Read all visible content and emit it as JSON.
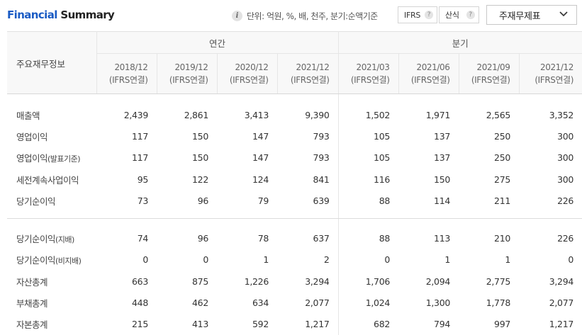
{
  "header": {
    "title_accent": "Financial",
    "title_rest": " Summary",
    "unit_text": "단위: 억원, %, 배, 천주, 분기:순액기준",
    "toggle_ifrs": "IFRS",
    "toggle_sansik": "산식",
    "help_glyph": "?",
    "select_label": "주재무제표"
  },
  "table": {
    "item_header": "주요재무정보",
    "group_annual": "연간",
    "group_quarter": "분기",
    "periods": [
      {
        "date": "2018/12",
        "basis": "(IFRS연결)"
      },
      {
        "date": "2019/12",
        "basis": "(IFRS연결)"
      },
      {
        "date": "2020/12",
        "basis": "(IFRS연결)"
      },
      {
        "date": "2021/12",
        "basis": "(IFRS연결)"
      },
      {
        "date": "2021/03",
        "basis": "(IFRS연결)"
      },
      {
        "date": "2021/06",
        "basis": "(IFRS연결)"
      },
      {
        "date": "2021/09",
        "basis": "(IFRS연결)"
      },
      {
        "date": "2021/12",
        "basis": "(IFRS연결)"
      }
    ],
    "rows": [
      {
        "label": "매출액",
        "sub": "",
        "values": [
          "2,439",
          "2,861",
          "3,413",
          "9,390",
          "1,502",
          "1,971",
          "2,565",
          "3,352"
        ]
      },
      {
        "label": "영업이익",
        "sub": "",
        "values": [
          "117",
          "150",
          "147",
          "793",
          "105",
          "137",
          "250",
          "300"
        ]
      },
      {
        "label": "영업이익",
        "sub": "(발표기준)",
        "values": [
          "117",
          "150",
          "147",
          "793",
          "105",
          "137",
          "250",
          "300"
        ]
      },
      {
        "label": "세전계속사업이익",
        "sub": "",
        "values": [
          "95",
          "122",
          "124",
          "841",
          "116",
          "150",
          "275",
          "300"
        ]
      },
      {
        "label": "당기순이익",
        "sub": "",
        "values": [
          "73",
          "96",
          "79",
          "639",
          "88",
          "114",
          "211",
          "226"
        ]
      },
      {
        "label": "당기순이익",
        "sub": "(지배)",
        "values": [
          "74",
          "96",
          "78",
          "637",
          "88",
          "113",
          "210",
          "226"
        ]
      },
      {
        "label": "당기순이익",
        "sub": "(비지배)",
        "values": [
          "0",
          "0",
          "1",
          "2",
          "0",
          "1",
          "1",
          "0"
        ]
      },
      {
        "label": "자산총계",
        "sub": "",
        "values": [
          "663",
          "875",
          "1,226",
          "3,294",
          "1,706",
          "2,094",
          "2,775",
          "3,294"
        ]
      },
      {
        "label": "부채총계",
        "sub": "",
        "values": [
          "448",
          "462",
          "634",
          "2,077",
          "1,024",
          "1,300",
          "1,778",
          "2,077"
        ]
      },
      {
        "label": "자본총계",
        "sub": "",
        "values": [
          "215",
          "413",
          "592",
          "1,217",
          "682",
          "794",
          "997",
          "1,217"
        ]
      }
    ]
  }
}
